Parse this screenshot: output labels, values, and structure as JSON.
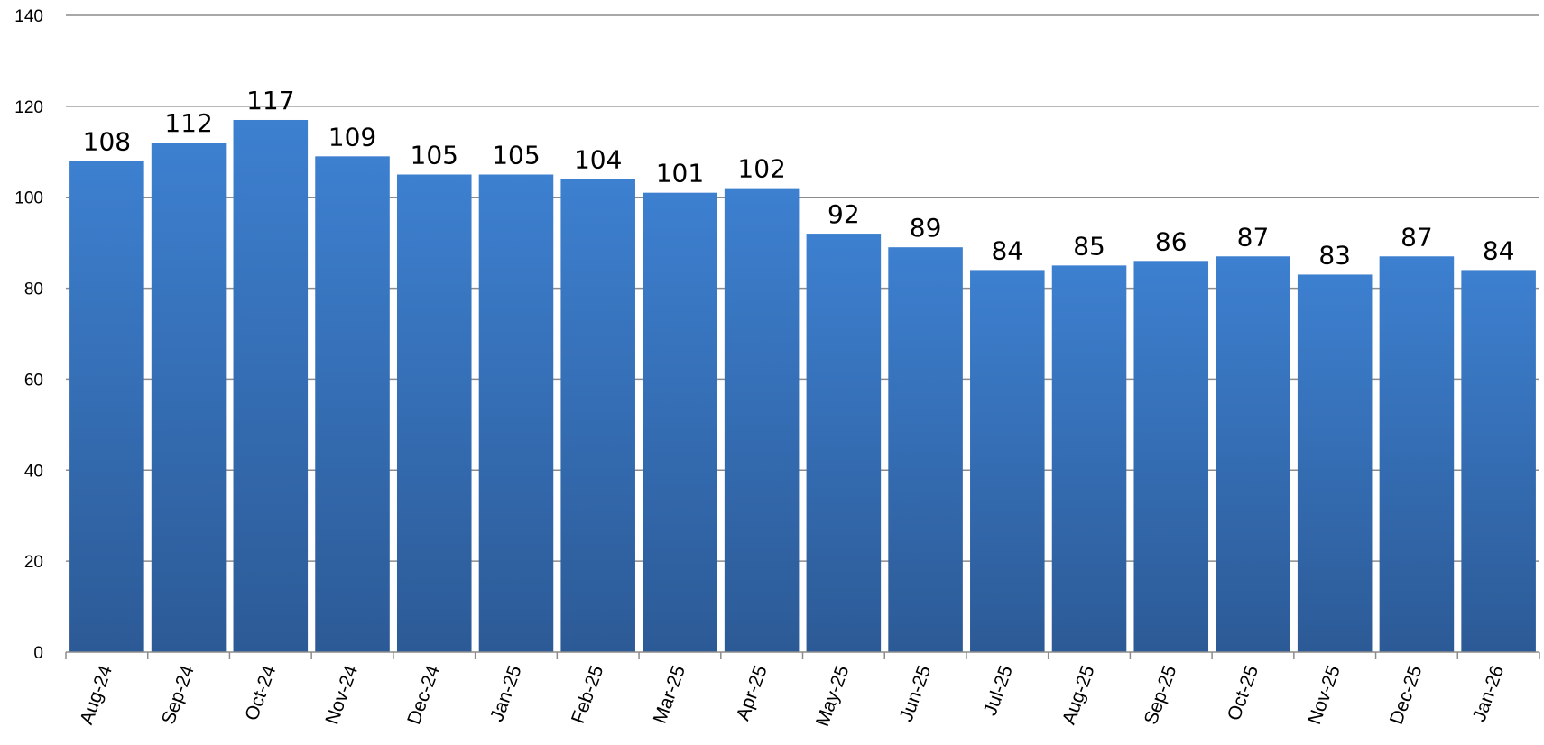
{
  "chart_data": {
    "type": "bar",
    "title": "",
    "xlabel": "",
    "ylabel": "",
    "ylim": [
      0,
      140
    ],
    "yticks": [
      0,
      20,
      40,
      60,
      80,
      100,
      120,
      140
    ],
    "grid": true,
    "legend": "none",
    "categories": [
      "Aug-24",
      "Sep-24",
      "Oct-24",
      "Nov-24",
      "Dec-24",
      "Jan-25",
      "Feb-25",
      "Mar-25",
      "Apr-25",
      "May-25",
      "Jun-25",
      "Jul-25",
      "Aug-25",
      "Sep-25",
      "Oct-25",
      "Nov-25",
      "Dec-25",
      "Jan-26"
    ],
    "values": [
      108,
      112,
      117,
      109,
      105,
      105,
      104,
      101,
      102,
      92,
      89,
      84,
      85,
      86,
      87,
      83,
      87,
      84
    ],
    "colors": {
      "bar_top": "#3d80d0",
      "bar_bottom": "#2c5a96",
      "grid": "#8c8c8c"
    }
  }
}
